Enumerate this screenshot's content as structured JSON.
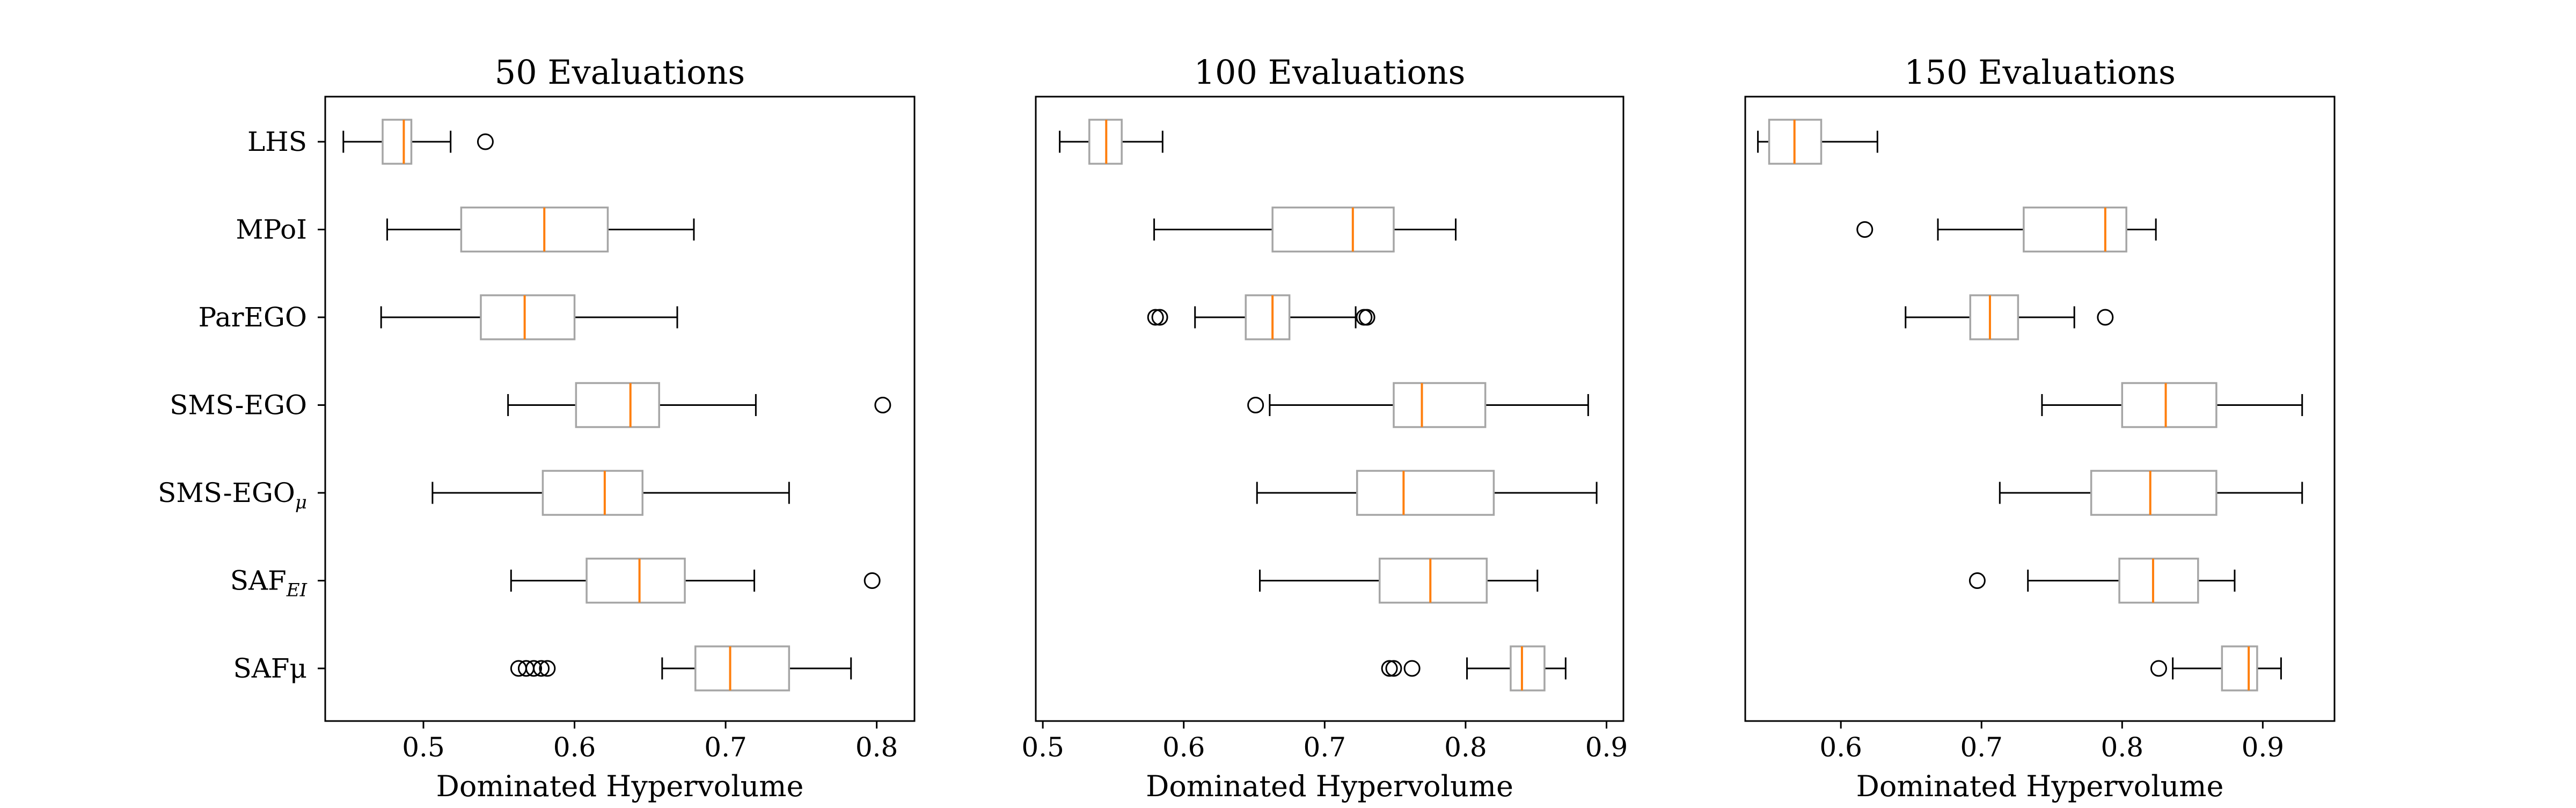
{
  "colors": {
    "box": "#a6a6a6",
    "median": "#ff7f0e",
    "whisker": "#000000",
    "axes": "#000000"
  },
  "chart_data": [
    {
      "type": "boxplot",
      "orientation": "horizontal",
      "title": "50 Evaluations",
      "xlabel": "Dominated Hypervolume",
      "xlim": [
        0.435,
        0.825
      ],
      "xticks": [
        0.5,
        0.6,
        0.7,
        0.8
      ],
      "xtick_labels": [
        "0.5",
        "0.6",
        "0.7",
        "0.8"
      ],
      "show_category_labels": true,
      "series": [
        {
          "name": "LHS",
          "whislo": 0.447,
          "q1": 0.473,
          "med": 0.487,
          "q3": 0.492,
          "whishi": 0.518,
          "fliers": [
            0.541
          ]
        },
        {
          "name": "MPoI",
          "whislo": 0.476,
          "q1": 0.525,
          "med": 0.58,
          "q3": 0.622,
          "whishi": 0.679,
          "fliers": []
        },
        {
          "name": "ParEGO",
          "whislo": 0.472,
          "q1": 0.538,
          "med": 0.567,
          "q3": 0.6,
          "whishi": 0.668,
          "fliers": []
        },
        {
          "name": "SMS-EGO",
          "whislo": 0.556,
          "q1": 0.601,
          "med": 0.637,
          "q3": 0.656,
          "whishi": 0.72,
          "fliers": [
            0.804
          ]
        },
        {
          "name": "SMS-EGOμ",
          "whislo": 0.506,
          "q1": 0.579,
          "med": 0.62,
          "q3": 0.645,
          "whishi": 0.742,
          "fliers": []
        },
        {
          "name": "SAFEI",
          "whislo": 0.558,
          "q1": 0.608,
          "med": 0.643,
          "q3": 0.673,
          "whishi": 0.719,
          "fliers": [
            0.797
          ]
        },
        {
          "name": "SAFμ",
          "whislo": 0.658,
          "q1": 0.68,
          "med": 0.703,
          "q3": 0.742,
          "whishi": 0.783,
          "fliers": [
            0.563,
            0.568,
            0.573,
            0.578,
            0.582
          ]
        }
      ]
    },
    {
      "type": "boxplot",
      "orientation": "horizontal",
      "title": "100 Evaluations",
      "xlabel": "Dominated Hypervolume",
      "xlim": [
        0.495,
        0.912
      ],
      "xticks": [
        0.5,
        0.6,
        0.7,
        0.8,
        0.9
      ],
      "xtick_labels": [
        "0.5",
        "0.6",
        "0.7",
        "0.8",
        "0.9"
      ],
      "show_category_labels": false,
      "series": [
        {
          "name": "LHS",
          "whislo": 0.512,
          "q1": 0.533,
          "med": 0.545,
          "q3": 0.556,
          "whishi": 0.585,
          "fliers": []
        },
        {
          "name": "MPoI",
          "whislo": 0.579,
          "q1": 0.663,
          "med": 0.72,
          "q3": 0.749,
          "whishi": 0.793,
          "fliers": []
        },
        {
          "name": "ParEGO",
          "whislo": 0.608,
          "q1": 0.644,
          "med": 0.663,
          "q3": 0.675,
          "whishi": 0.722,
          "fliers": [
            0.58,
            0.583,
            0.728,
            0.73
          ]
        },
        {
          "name": "SMS-EGO",
          "whislo": 0.661,
          "q1": 0.749,
          "med": 0.769,
          "q3": 0.814,
          "whishi": 0.887,
          "fliers": [
            0.651
          ]
        },
        {
          "name": "SMS-EGOμ",
          "whislo": 0.652,
          "q1": 0.723,
          "med": 0.756,
          "q3": 0.82,
          "whishi": 0.893,
          "fliers": []
        },
        {
          "name": "SAFEI",
          "whislo": 0.654,
          "q1": 0.739,
          "med": 0.775,
          "q3": 0.815,
          "whishi": 0.851,
          "fliers": []
        },
        {
          "name": "SAFμ",
          "whislo": 0.801,
          "q1": 0.832,
          "med": 0.84,
          "q3": 0.856,
          "whishi": 0.871,
          "fliers": [
            0.746,
            0.749,
            0.762
          ]
        }
      ]
    },
    {
      "type": "boxplot",
      "orientation": "horizontal",
      "title": "150 Evaluations",
      "xlabel": "Dominated Hypervolume",
      "xlim": [
        0.532,
        0.951
      ],
      "xticks": [
        0.6,
        0.7,
        0.8,
        0.9
      ],
      "xtick_labels": [
        "0.6",
        "0.7",
        "0.8",
        "0.9"
      ],
      "show_category_labels": false,
      "series": [
        {
          "name": "LHS",
          "whislo": 0.541,
          "q1": 0.549,
          "med": 0.567,
          "q3": 0.586,
          "whishi": 0.626,
          "fliers": []
        },
        {
          "name": "MPoI",
          "whislo": 0.669,
          "q1": 0.73,
          "med": 0.788,
          "q3": 0.803,
          "whishi": 0.824,
          "fliers": [
            0.617
          ]
        },
        {
          "name": "ParEGO",
          "whislo": 0.646,
          "q1": 0.692,
          "med": 0.706,
          "q3": 0.726,
          "whishi": 0.766,
          "fliers": [
            0.788
          ]
        },
        {
          "name": "SMS-EGO",
          "whislo": 0.743,
          "q1": 0.8,
          "med": 0.831,
          "q3": 0.867,
          "whishi": 0.928,
          "fliers": []
        },
        {
          "name": "SMS-EGOμ",
          "whislo": 0.713,
          "q1": 0.778,
          "med": 0.82,
          "q3": 0.867,
          "whishi": 0.928,
          "fliers": []
        },
        {
          "name": "SAFEI",
          "whislo": 0.733,
          "q1": 0.798,
          "med": 0.822,
          "q3": 0.854,
          "whishi": 0.88,
          "fliers": [
            0.697
          ]
        },
        {
          "name": "SAFμ",
          "whislo": 0.836,
          "q1": 0.871,
          "med": 0.89,
          "q3": 0.896,
          "whishi": 0.913,
          "fliers": [
            0.826
          ]
        }
      ]
    }
  ],
  "category_labels": [
    {
      "base": "LHS",
      "sub": ""
    },
    {
      "base": "MPoI",
      "sub": ""
    },
    {
      "base": "ParEGO",
      "sub": ""
    },
    {
      "base": "SMS-EGO",
      "sub": ""
    },
    {
      "base": "SMS-EGO",
      "sub": "μ"
    },
    {
      "base": "SAF",
      "sub": "EI"
    },
    {
      "base": "SAFμ",
      "sub": ""
    }
  ]
}
